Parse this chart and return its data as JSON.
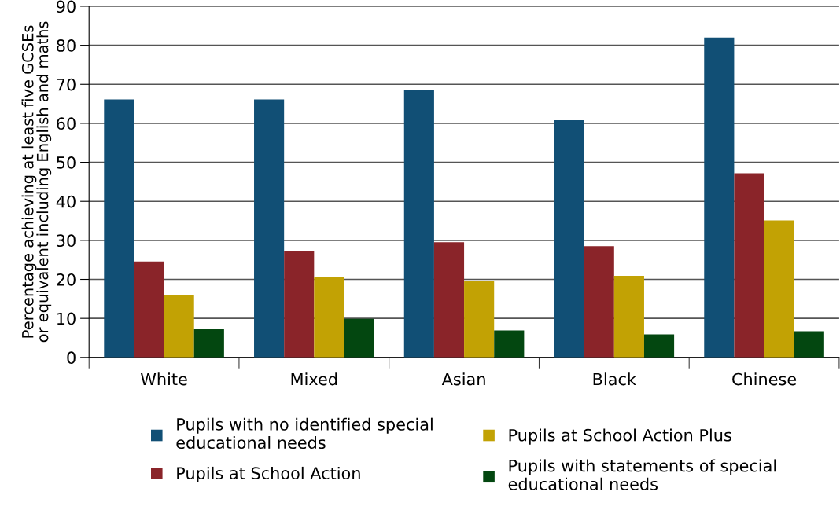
{
  "chart_data": {
    "type": "bar",
    "ylabel": "Percentage achieving at least five GCSEs\nor equivalent including English and maths",
    "categories": [
      "White",
      "Mixed",
      "Asian",
      "Black",
      "Chinese"
    ],
    "series": [
      {
        "name": "Pupils with no identified special\neducational needs",
        "color": "#114f75",
        "values": [
          66.1,
          66.1,
          68.6,
          60.8,
          82.0
        ]
      },
      {
        "name": "Pupils at School Action",
        "color": "#8a2429",
        "values": [
          24.6,
          27.2,
          29.5,
          28.5,
          47.2
        ]
      },
      {
        "name": "Pupils at School Action Plus",
        "color": "#c2a204",
        "values": [
          16.0,
          20.7,
          19.6,
          20.9,
          35.1
        ]
      },
      {
        "name": "Pupils with statements of special\neducational needs",
        "color": "#034710",
        "values": [
          7.2,
          9.9,
          6.9,
          5.9,
          6.7
        ]
      }
    ],
    "ylim": [
      0,
      90
    ],
    "yticks": [
      0,
      10,
      20,
      30,
      40,
      50,
      60,
      70,
      80,
      90
    ],
    "grid": "y",
    "legend": "bottom"
  }
}
